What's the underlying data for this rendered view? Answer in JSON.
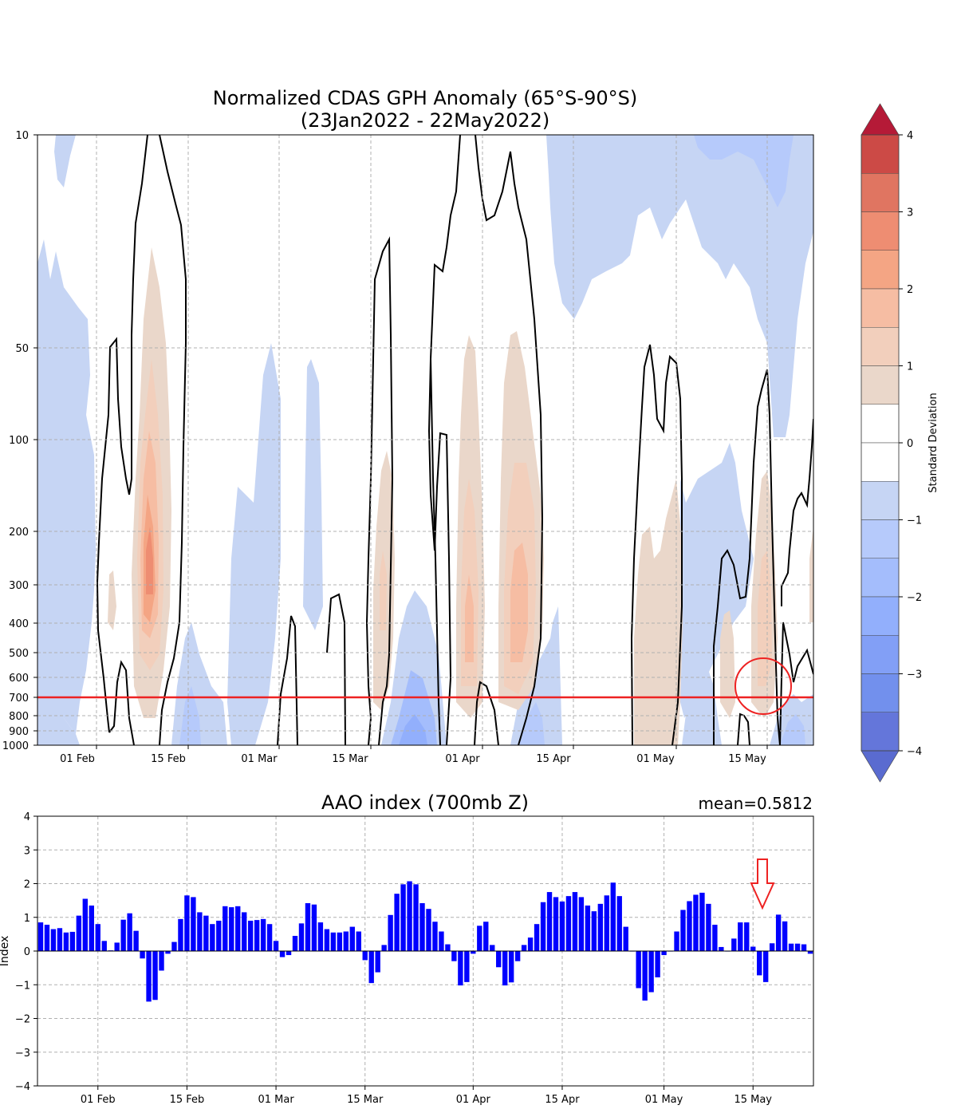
{
  "top_chart": {
    "title_line1": "Normalized CDAS GPH Anomaly (65°S-90°S)",
    "title_line2": "(23Jan2022 - 22May2022)",
    "xticks": [
      "01 Feb",
      "15 Feb",
      "01 Mar",
      "15 Mar",
      "01 Apr",
      "15 Apr",
      "01 May",
      "15 May"
    ],
    "yticks": [
      "10",
      "50",
      "100",
      "200",
      "300",
      "400",
      "500",
      "600",
      "700",
      "800",
      "900",
      "1000"
    ],
    "highlight_level": "700",
    "colorbar": {
      "label": "Standard Deviation",
      "ticks": [
        "4",
        "3",
        "2",
        "1",
        "0",
        "−1",
        "−2",
        "−3",
        "−4"
      ],
      "colors_top_to_bottom": [
        "#cc4a46",
        "#e07561",
        "#ee8d72",
        "#f4a584",
        "#f6bda3",
        "#f2cfbc",
        "#ead7ca",
        "#ffffff",
        "#ffffff",
        "#c6d5f4",
        "#b6cafb",
        "#a4bdfc",
        "#92affc",
        "#829ff6",
        "#7290ed",
        "#6476da"
      ],
      "extend_max_color": "#b51a37",
      "extend_min_color": "#5a6bd0"
    }
  },
  "chart_data": [
    {
      "type": "heatmap",
      "title": "Normalized CDAS GPH Anomaly (65°S-90°S)\n(23Jan2022 - 22May2022)",
      "x_range": [
        "23Jan2022",
        "22May2022"
      ],
      "y_levels_hPa": [
        10,
        50,
        100,
        200,
        300,
        400,
        500,
        600,
        700,
        800,
        900,
        1000
      ],
      "y_scale": "log (inverted)",
      "colorbar_range": [
        -4,
        4
      ],
      "colorbar_label": "Standard Deviation",
      "contour": "black outline of zero-crossing regions",
      "highlight": "red horizontal line at 700 hPa and red circle near 15 May"
    },
    {
      "type": "bar",
      "title": "AAO index (700mb Z)",
      "annotation": "mean=0.5812",
      "ylabel": "Index",
      "ylim": [
        -4,
        4
      ],
      "yticks": [
        "4",
        "3",
        "2",
        "1",
        "0",
        "−1",
        "−2",
        "−3",
        "−4"
      ],
      "xticks": [
        "01 Feb",
        "15 Feb",
        "01 Mar",
        "15 Mar",
        "01 Apr",
        "15 Apr",
        "01 May",
        "15 May"
      ],
      "start_date": "2022-01-23",
      "color": "#0000ff",
      "values": [
        0.85,
        0.78,
        0.65,
        0.68,
        0.55,
        0.57,
        1.05,
        1.55,
        1.35,
        0.8,
        0.3,
        0.02,
        0.25,
        0.93,
        1.12,
        0.6,
        -0.22,
        -1.5,
        -1.45,
        -0.58,
        -0.08,
        0.27,
        0.95,
        1.65,
        1.6,
        1.15,
        1.05,
        0.8,
        0.9,
        1.33,
        1.3,
        1.33,
        1.15,
        0.9,
        0.92,
        0.95,
        0.8,
        0.3,
        -0.18,
        -0.12,
        0.45,
        0.82,
        1.42,
        1.38,
        0.85,
        0.65,
        0.55,
        0.55,
        0.58,
        0.72,
        0.58,
        -0.27,
        -0.95,
        -0.63,
        0.18,
        1.07,
        1.7,
        1.98,
        2.07,
        1.98,
        1.42,
        1.25,
        0.87,
        0.58,
        0.2,
        -0.3,
        -1.02,
        -0.92,
        -0.08,
        0.75,
        0.87,
        0.18,
        -0.48,
        -1.02,
        -0.93,
        -0.3,
        0.18,
        0.4,
        0.8,
        1.45,
        1.75,
        1.6,
        1.47,
        1.63,
        1.75,
        1.6,
        1.35,
        1.18,
        1.4,
        1.65,
        2.03,
        1.63,
        0.72,
        0.0,
        -1.1,
        -1.47,
        -1.22,
        -0.78,
        -0.12,
        0.0,
        0.58,
        1.22,
        1.48,
        1.67,
        1.73,
        1.4,
        0.78,
        0.12,
        0.0,
        0.37,
        0.85,
        0.85,
        0.13,
        -0.72,
        -0.92,
        0.23,
        1.08,
        0.88,
        0.22,
        0.22,
        0.2,
        -0.08
      ],
      "highlight": "red down arrow marker above 15 May"
    }
  ],
  "bottom_chart": {
    "title": "AAO index (700mb Z)",
    "mean_label": "mean=0.5812",
    "ylabel": "Index"
  }
}
